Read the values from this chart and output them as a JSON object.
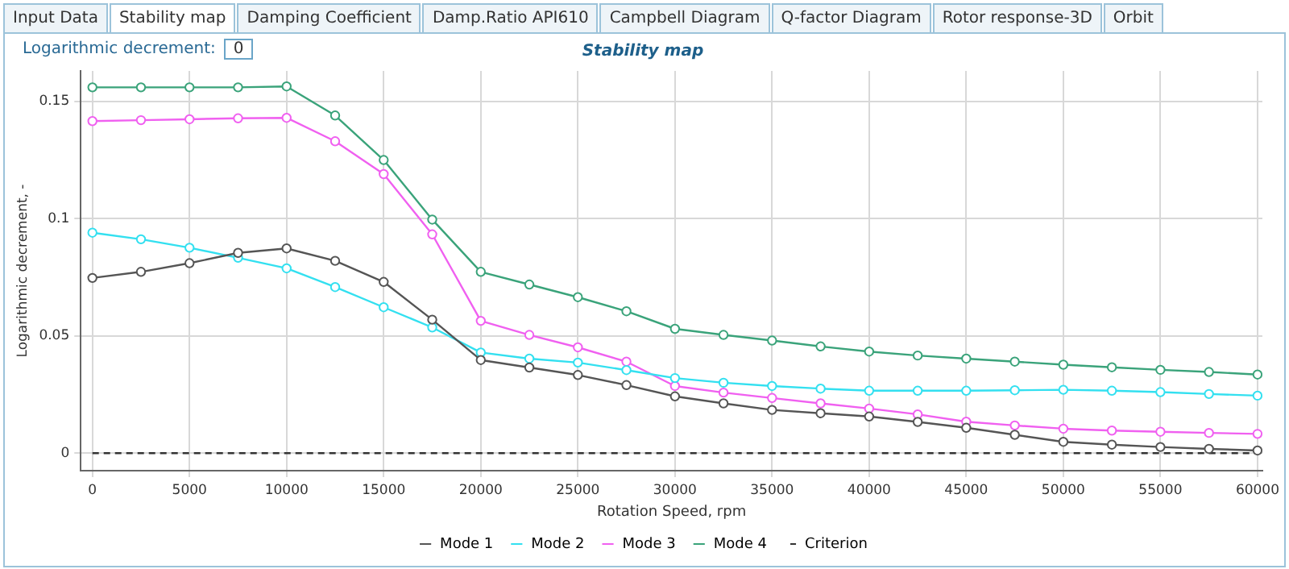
{
  "chart_data": {
    "type": "line",
    "title": "Stability map",
    "xlabel": "Rotation Speed, rpm",
    "ylabel": "Logarithmic decrement, -",
    "annotations": [
      "Input Data",
      "Stability map",
      "Damping Coefficient",
      "Damp.Ratio API610",
      "Campbell Diagram",
      "Q-factor Diagram",
      "Rotor response-3D",
      "Orbit",
      "Logarithmic decrement:",
      "0"
    ],
    "x": [
      0,
      2500,
      5000,
      7500,
      10000,
      12500,
      15000,
      17500,
      20000,
      22500,
      25000,
      27500,
      30000,
      32500,
      35000,
      37500,
      40000,
      42500,
      45000,
      47500,
      50000,
      52500,
      55000,
      57500,
      60000
    ],
    "series": [
      {
        "name": "Mode 1",
        "color": "#555555",
        "values": [
          0.0747,
          0.0773,
          0.081,
          0.0854,
          0.0873,
          0.082,
          0.073,
          0.0569,
          0.0397,
          0.0365,
          0.0333,
          0.029,
          0.0242,
          0.0212,
          0.0184,
          0.017,
          0.0156,
          0.0133,
          0.0108,
          0.0078,
          0.0048,
          0.0036,
          0.0026,
          0.0018,
          0.0011
        ]
      },
      {
        "name": "Mode 2",
        "color": "#33e0f0",
        "values": [
          0.094,
          0.0912,
          0.0876,
          0.0833,
          0.0788,
          0.0708,
          0.0622,
          0.0536,
          0.0429,
          0.0403,
          0.0386,
          0.0354,
          0.032,
          0.03,
          0.0286,
          0.0275,
          0.0266,
          0.0266,
          0.0266,
          0.0268,
          0.027,
          0.0266,
          0.026,
          0.0252,
          0.0245
        ]
      },
      {
        "name": "Mode 3",
        "color": "#f060f0",
        "values": [
          0.1416,
          0.142,
          0.1424,
          0.1428,
          0.143,
          0.133,
          0.119,
          0.0933,
          0.0564,
          0.0504,
          0.0451,
          0.039,
          0.0286,
          0.0258,
          0.0235,
          0.0212,
          0.019,
          0.0165,
          0.0134,
          0.0118,
          0.0104,
          0.0096,
          0.0091,
          0.0086,
          0.0082
        ]
      },
      {
        "name": "Mode 4",
        "color": "#3aa37a",
        "values": [
          0.156,
          0.156,
          0.156,
          0.156,
          0.1564,
          0.144,
          0.125,
          0.0996,
          0.0773,
          0.0719,
          0.0665,
          0.0605,
          0.053,
          0.0504,
          0.048,
          0.0455,
          0.0433,
          0.0416,
          0.0403,
          0.039,
          0.0377,
          0.0366,
          0.0355,
          0.0346,
          0.0335
        ]
      },
      {
        "name": "Criterion",
        "color": "#333333",
        "x": [
          0,
          60000
        ],
        "values": [
          0,
          0
        ],
        "marker": "none",
        "line_style": "dashed"
      }
    ],
    "xlim": [
      -600,
      60250
    ],
    "xticks": [
      0,
      5000,
      10000,
      15000,
      20000,
      25000,
      30000,
      35000,
      40000,
      45000,
      50000,
      55000,
      60000
    ],
    "ylim": [
      -0.0075,
      0.163
    ],
    "yticks": [
      0,
      0.05,
      0.1,
      0.15
    ],
    "grid": true,
    "legend": "bottom",
    "marker": "circle",
    "line_style": "solid"
  }
}
